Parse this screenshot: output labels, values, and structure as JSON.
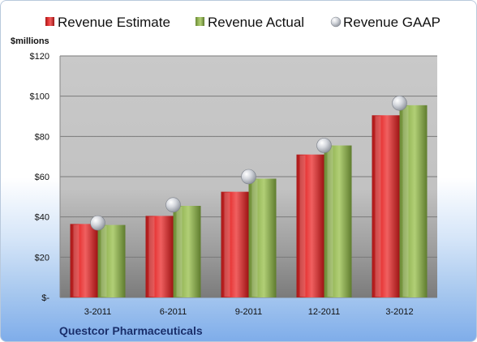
{
  "chart_data": {
    "type": "bar",
    "categories": [
      "3-2011",
      "6-2011",
      "9-2011",
      "12-2011",
      "3-2012"
    ],
    "series": [
      {
        "name": "Revenue Estimate",
        "values": [
          36.5,
          40.5,
          52.5,
          71,
          90.5
        ],
        "color": "#d22a2a"
      },
      {
        "name": "Revenue Actual",
        "values": [
          36,
          45.5,
          59,
          75.5,
          95.5
        ],
        "color": "#8aac4e"
      },
      {
        "name": "Revenue GAAP",
        "values": [
          37,
          46,
          60,
          75.5,
          96.5
        ],
        "color": "#c9cdd4",
        "marker": "sphere"
      }
    ],
    "ylabel": "$millions",
    "ylim": [
      0,
      120
    ],
    "yticks": [
      0,
      20,
      40,
      60,
      80,
      100,
      120
    ],
    "ytick_labels": [
      "$-",
      "$20",
      "$40",
      "$60",
      "$80",
      "$100",
      "$120"
    ],
    "grid": true,
    "legend_position": "top",
    "footer": "Questcor Pharmaceuticals"
  }
}
